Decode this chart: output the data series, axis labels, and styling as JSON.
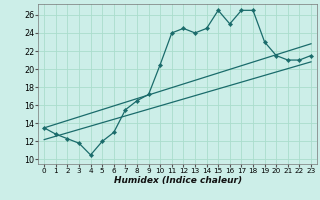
{
  "title": "",
  "xlabel": "Humidex (Indice chaleur)",
  "bg_color": "#cceee8",
  "grid_color": "#aaddcc",
  "line_color": "#1a6b6b",
  "xlim": [
    -0.5,
    23.5
  ],
  "ylim": [
    9.5,
    27.2
  ],
  "xticks": [
    0,
    1,
    2,
    3,
    4,
    5,
    6,
    7,
    8,
    9,
    10,
    11,
    12,
    13,
    14,
    15,
    16,
    17,
    18,
    19,
    20,
    21,
    22,
    23
  ],
  "yticks": [
    10,
    12,
    14,
    16,
    18,
    20,
    22,
    24,
    26
  ],
  "main_x": [
    0,
    1,
    2,
    3,
    4,
    5,
    6,
    7,
    8,
    9,
    10,
    11,
    12,
    13,
    14,
    15,
    16,
    17,
    18,
    19,
    20,
    21,
    22,
    23
  ],
  "main_y": [
    13.5,
    12.8,
    12.3,
    11.8,
    10.5,
    12.0,
    13.0,
    15.5,
    16.5,
    17.2,
    20.5,
    24.0,
    24.5,
    24.0,
    24.5,
    26.5,
    25.0,
    26.5,
    26.5,
    23.0,
    21.5,
    21.0,
    21.0,
    21.5
  ],
  "line1_x": [
    0,
    23
  ],
  "line1_y": [
    12.2,
    20.8
  ],
  "line2_x": [
    0,
    23
  ],
  "line2_y": [
    13.5,
    22.8
  ]
}
